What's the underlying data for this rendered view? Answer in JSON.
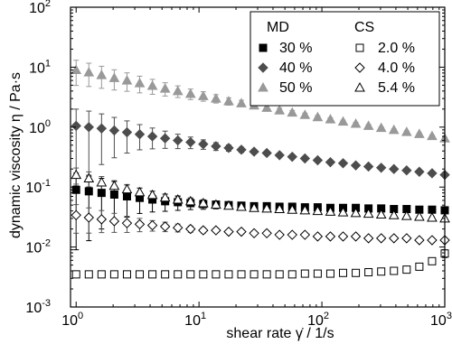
{
  "chart_data": {
    "type": "scatter",
    "xlabel": "shear rate γ̇ / 1/s",
    "ylabel": "dynamic viscosity η / Pa·s",
    "xscale": "log",
    "yscale": "log",
    "xlim": [
      0.9,
      1000
    ],
    "ylim": [
      0.001,
      100
    ],
    "x_ticks": [
      {
        "base": "10",
        "exp": "0",
        "value": 1
      },
      {
        "base": "10",
        "exp": "1",
        "value": 10
      },
      {
        "base": "10",
        "exp": "2",
        "value": 100
      },
      {
        "base": "10",
        "exp": "3",
        "value": 1000
      }
    ],
    "y_ticks": [
      {
        "base": "10",
        "exp": "-3",
        "value": 0.001
      },
      {
        "base": "10",
        "exp": "-2",
        "value": 0.01
      },
      {
        "base": "10",
        "exp": "-1",
        "value": 0.1
      },
      {
        "base": "10",
        "exp": "0",
        "value": 1
      },
      {
        "base": "10",
        "exp": "1",
        "value": 10
      },
      {
        "base": "10",
        "exp": "2",
        "value": 100
      }
    ],
    "legend": {
      "position": "top-right",
      "headers": [
        "MD",
        "CS"
      ],
      "entries": [
        {
          "label": "30 %",
          "group": "MD",
          "marker": "square",
          "fill": "#000000"
        },
        {
          "label": "40 %",
          "group": "MD",
          "marker": "diamond",
          "fill": "#4d4d4d"
        },
        {
          "label": "50 %",
          "group": "MD",
          "marker": "triangle",
          "fill": "#999999"
        },
        {
          "label": "2.0 %",
          "group": "CS",
          "marker": "square-open",
          "fill": "none"
        },
        {
          "label": "4.0 %",
          "group": "CS",
          "marker": "diamond-open",
          "fill": "none"
        },
        {
          "label": "5.4 %",
          "group": "CS",
          "marker": "triangle-open",
          "fill": "none"
        }
      ]
    },
    "series": [
      {
        "name": "30 %",
        "group": "MD",
        "marker": "square",
        "color": "#000000",
        "x0": 1,
        "x1": 1000,
        "n": 30,
        "y": [
          0.09,
          0.085,
          0.08,
          0.075,
          0.07,
          0.066,
          0.062,
          0.058,
          0.056,
          0.054,
          0.052,
          0.051,
          0.05,
          0.049,
          0.048,
          0.048,
          0.047,
          0.047,
          0.046,
          0.046,
          0.045,
          0.045,
          0.045,
          0.044,
          0.044,
          0.043,
          0.043,
          0.042,
          0.042,
          0.041
        ],
        "err_rel": [
          0.9,
          0.85,
          0.75,
          0.65,
          0.55,
          0.45,
          0.38,
          0.32,
          0.27,
          0.22,
          0.18,
          0.15,
          0.12,
          0.1,
          0.08,
          0.07,
          0.06,
          0.05,
          0.05,
          0.04,
          0.04,
          0.04,
          0.03,
          0.03,
          0.03,
          0.03,
          0.03,
          0.03,
          0.03,
          0.03
        ]
      },
      {
        "name": "40 %",
        "group": "MD",
        "marker": "diamond",
        "color": "#4d4d4d",
        "x0": 1,
        "x1": 1000,
        "n": 30,
        "y": [
          1.05,
          1.0,
          0.95,
          0.88,
          0.82,
          0.76,
          0.7,
          0.65,
          0.6,
          0.56,
          0.52,
          0.48,
          0.45,
          0.42,
          0.39,
          0.37,
          0.34,
          0.32,
          0.3,
          0.28,
          0.26,
          0.25,
          0.23,
          0.22,
          0.21,
          0.2,
          0.19,
          0.18,
          0.17,
          0.16
        ],
        "err_rel": [
          0.9,
          0.85,
          0.75,
          0.65,
          0.55,
          0.45,
          0.38,
          0.32,
          0.27,
          0.22,
          0.18,
          0.15,
          0.12,
          0.1,
          0.08,
          0.07,
          0.06,
          0.05,
          0.05,
          0.04,
          0.04,
          0.04,
          0.03,
          0.03,
          0.03,
          0.03,
          0.03,
          0.03,
          0.03,
          0.03
        ]
      },
      {
        "name": "50 %",
        "group": "MD",
        "marker": "triangle",
        "color": "#999999",
        "x0": 1,
        "x1": 1000,
        "n": 30,
        "y": [
          9.0,
          8.2,
          7.4,
          6.6,
          6.0,
          5.4,
          4.9,
          4.4,
          4.0,
          3.6,
          3.3,
          3.0,
          2.7,
          2.5,
          2.3,
          2.1,
          1.9,
          1.75,
          1.6,
          1.47,
          1.35,
          1.24,
          1.14,
          1.05,
          0.97,
          0.9,
          0.83,
          0.77,
          0.71,
          0.65
        ],
        "err_rel": [
          0.45,
          0.42,
          0.4,
          0.37,
          0.34,
          0.31,
          0.28,
          0.25,
          0.22,
          0.2,
          0.18,
          0.16,
          0.14,
          0.12,
          0.11,
          0.1,
          0.09,
          0.08,
          0.07,
          0.06,
          0.06,
          0.05,
          0.05,
          0.05,
          0.04,
          0.04,
          0.04,
          0.04,
          0.04,
          0.04
        ]
      },
      {
        "name": "2.0 %",
        "group": "CS",
        "marker": "square-open",
        "color": "#000000",
        "x0": 1,
        "x1": 1000,
        "n": 30,
        "y": [
          0.0035,
          0.0035,
          0.0035,
          0.0035,
          0.0035,
          0.0035,
          0.0035,
          0.0035,
          0.0035,
          0.0035,
          0.0035,
          0.0035,
          0.0035,
          0.0035,
          0.0035,
          0.0035,
          0.0035,
          0.0035,
          0.0036,
          0.0036,
          0.0036,
          0.0037,
          0.0037,
          0.0038,
          0.0039,
          0.004,
          0.0042,
          0.0047,
          0.0058,
          0.0078
        ],
        "err_rel": [
          0,
          0,
          0,
          0,
          0,
          0,
          0,
          0,
          0,
          0,
          0,
          0,
          0,
          0,
          0,
          0,
          0,
          0,
          0,
          0,
          0,
          0,
          0,
          0,
          0,
          0,
          0,
          0,
          0.12,
          0.15
        ]
      },
      {
        "name": "4.0 %",
        "group": "CS",
        "marker": "diamond-open",
        "color": "#000000",
        "x0": 1,
        "x1": 1000,
        "n": 30,
        "y": [
          0.034,
          0.031,
          0.029,
          0.027,
          0.025,
          0.024,
          0.023,
          0.022,
          0.021,
          0.02,
          0.019,
          0.019,
          0.018,
          0.018,
          0.017,
          0.017,
          0.016,
          0.016,
          0.016,
          0.015,
          0.015,
          0.015,
          0.015,
          0.014,
          0.014,
          0.014,
          0.014,
          0.013,
          0.013,
          0.013
        ],
        "err_rel": [
          0.5,
          0.45,
          0.4,
          0.35,
          0.3,
          0.25,
          0.2,
          0.18,
          0.15,
          0.12,
          0.1,
          0.08,
          0.07,
          0.06,
          0.05,
          0.05,
          0.04,
          0.04,
          0.04,
          0.03,
          0.03,
          0.03,
          0.03,
          0.03,
          0.03,
          0.03,
          0.03,
          0.03,
          0.03,
          0.03
        ]
      },
      {
        "name": "5.4 %",
        "group": "CS",
        "marker": "triangle-open",
        "color": "#000000",
        "x0": 1,
        "x1": 1000,
        "n": 30,
        "y": [
          0.16,
          0.14,
          0.12,
          0.105,
          0.092,
          0.082,
          0.074,
          0.067,
          0.062,
          0.058,
          0.054,
          0.051,
          0.049,
          0.047,
          0.045,
          0.044,
          0.043,
          0.042,
          0.041,
          0.04,
          0.039,
          0.038,
          0.037,
          0.036,
          0.035,
          0.034,
          0.033,
          0.032,
          0.031,
          0.03
        ],
        "err_rel": [
          0.3,
          0.28,
          0.25,
          0.22,
          0.2,
          0.18,
          0.15,
          0.13,
          0.11,
          0.09,
          0.08,
          0.07,
          0.06,
          0.05,
          0.05,
          0.04,
          0.04,
          0.04,
          0.03,
          0.03,
          0.03,
          0.03,
          0.03,
          0.03,
          0.03,
          0.03,
          0.03,
          0.03,
          0.03,
          0.03
        ]
      }
    ]
  }
}
